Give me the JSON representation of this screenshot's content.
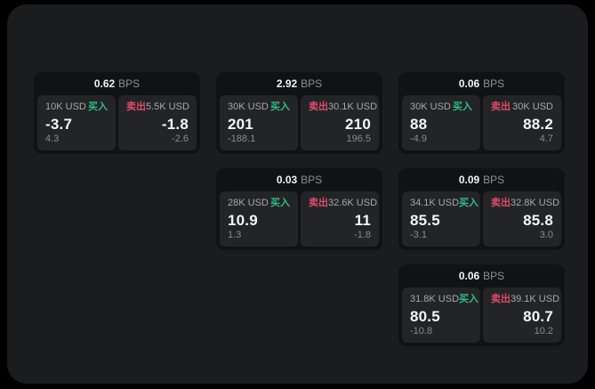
{
  "labels": {
    "unit": "BPS",
    "buy_side": "买入",
    "sell_side": "卖出"
  },
  "colors": {
    "buy_green": "#2ebd85",
    "sell_red": "#dd4a68",
    "panel_bg": "#1b1c1e",
    "card_bg": "#111214",
    "pane_bg": "#232427"
  },
  "cards": [
    {
      "bps": "0.62",
      "unit": "BPS",
      "buy": {
        "size": "10K USD",
        "side": "买入",
        "value": "-3.7",
        "sub": "4.3"
      },
      "sell": {
        "side": "卖出",
        "size": "5.5K USD",
        "value": "-1.8",
        "sub": "-2.6"
      }
    },
    {
      "bps": "2.92",
      "unit": "BPS",
      "buy": {
        "size": "30K USD",
        "side": "买入",
        "value": "201",
        "sub": "-188.1"
      },
      "sell": {
        "side": "卖出",
        "size": "30.1K USD",
        "value": "210",
        "sub": "196.5"
      }
    },
    {
      "bps": "0.06",
      "unit": "BPS",
      "buy": {
        "size": "30K USD",
        "side": "买入",
        "value": "88",
        "sub": "-4.9"
      },
      "sell": {
        "side": "卖出",
        "size": "30K USD",
        "value": "88.2",
        "sub": "4.7"
      }
    },
    {
      "bps": "0.03",
      "unit": "BPS",
      "buy": {
        "size": "28K USD",
        "side": "买入",
        "value": "10.9",
        "sub": "1.3"
      },
      "sell": {
        "side": "卖出",
        "size": "32.6K USD",
        "value": "11",
        "sub": "-1.8"
      }
    },
    {
      "bps": "0.09",
      "unit": "BPS",
      "buy": {
        "size": "34.1K USD",
        "side": "买入",
        "value": "85.5",
        "sub": "-3.1"
      },
      "sell": {
        "side": "卖出",
        "size": "32.8K USD",
        "value": "85.8",
        "sub": "3.0"
      }
    },
    {
      "bps": "0.06",
      "unit": "BPS",
      "buy": {
        "size": "31.8K USD",
        "side": "买入",
        "value": "80.5",
        "sub": "-10.8"
      },
      "sell": {
        "side": "卖出",
        "size": "39.1K USD",
        "value": "80.7",
        "sub": "10.2"
      }
    }
  ]
}
